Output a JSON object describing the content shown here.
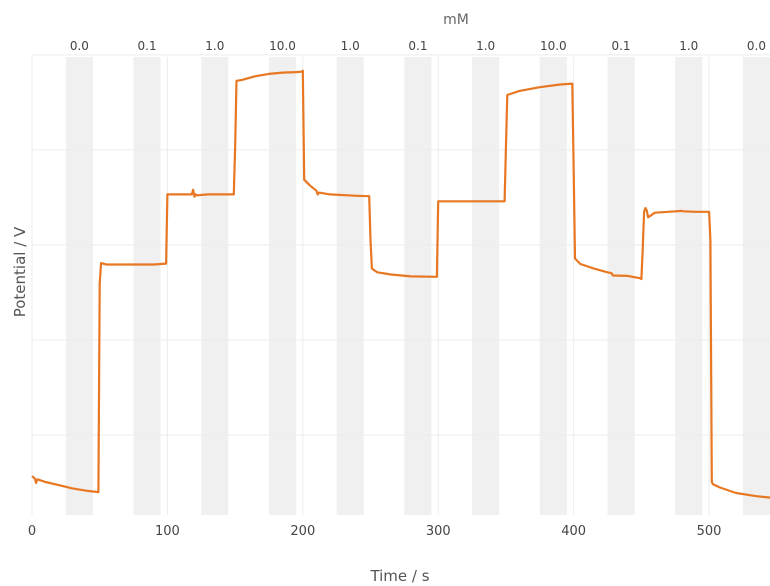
{
  "chart_data": {
    "type": "line",
    "xlabel": "Time / s",
    "ylabel": "Potential / V",
    "top_axis_title": "mM",
    "xlim": [
      0,
      545
    ],
    "ylim": [
      0,
      100
    ],
    "y_tick_labels_shown": false,
    "grid": true,
    "x_ticks": [
      0,
      100,
      200,
      300,
      400,
      500
    ],
    "x_tick_labels": [
      "0",
      "100",
      "200",
      "300",
      "400",
      "500"
    ],
    "top_ticks": [
      {
        "x": 35,
        "label": "0.0"
      },
      {
        "x": 85,
        "label": "0.1"
      },
      {
        "x": 135,
        "label": "1.0"
      },
      {
        "x": 185,
        "label": "10.0"
      },
      {
        "x": 235,
        "label": "1.0"
      },
      {
        "x": 285,
        "label": "0.1"
      },
      {
        "x": 335,
        "label": "1.0"
      },
      {
        "x": 385,
        "label": "10.0"
      },
      {
        "x": 435,
        "label": "0.1"
      },
      {
        "x": 485,
        "label": "1.0"
      },
      {
        "x": 535,
        "label": "0.0"
      }
    ],
    "shaded_intervals": [
      [
        25,
        45
      ],
      [
        75,
        95
      ],
      [
        125,
        145
      ],
      [
        175,
        195
      ],
      [
        225,
        245
      ],
      [
        275,
        295
      ],
      [
        325,
        345
      ],
      [
        375,
        395
      ],
      [
        425,
        445
      ],
      [
        475,
        495
      ],
      [
        525,
        545
      ]
    ],
    "series": [
      {
        "color": "#e87722",
        "x": [
          0,
          2,
          3,
          4,
          10,
          20,
          30,
          40,
          49,
          50,
          51,
          55,
          70,
          90,
          99,
          100,
          101,
          105,
          118,
          119,
          120,
          121,
          122,
          130,
          140,
          149,
          150,
          151,
          155,
          165,
          175,
          185,
          195,
          199,
          200,
          201,
          205,
          210,
          211,
          212,
          220,
          240,
          249,
          250,
          251,
          255,
          265,
          280,
          299,
          300,
          301,
          305,
          330,
          349,
          350,
          351,
          360,
          375,
          390,
          399,
          400,
          401,
          405,
          415,
          425,
          428,
          429,
          440,
          449,
          450,
          451,
          452,
          453,
          454,
          455,
          460,
          470,
          480,
          481,
          490,
          499,
          500,
          501,
          502,
          503,
          508,
          520,
          535,
          545
        ],
        "y": [
          8.5,
          8.0,
          7.0,
          7.8,
          7.2,
          6.5,
          5.8,
          5.3,
          5.0,
          50.5,
          55.0,
          54.7,
          54.7,
          54.7,
          54.9,
          70.0,
          70.0,
          70.0,
          70.0,
          71.0,
          69.5,
          70.0,
          69.8,
          70.0,
          70.0,
          70.0,
          80.0,
          94.8,
          95.0,
          95.8,
          96.3,
          96.6,
          96.7,
          96.8,
          97.0,
          73.2,
          72.0,
          70.8,
          70.0,
          70.4,
          70.0,
          69.7,
          69.6,
          60.0,
          53.8,
          53.0,
          52.5,
          52.1,
          52.0,
          68.5,
          68.5,
          68.5,
          68.5,
          68.5,
          80.0,
          91.7,
          92.6,
          93.4,
          94.0,
          94.2,
          75.0,
          56.0,
          54.8,
          53.8,
          53.0,
          52.8,
          52.3,
          52.2,
          51.7,
          51.5,
          58.0,
          66.2,
          67.0,
          66.5,
          65.0,
          66.0,
          66.2,
          66.4,
          66.3,
          66.2,
          66.2,
          66.2,
          60.0,
          7.2,
          6.7,
          6.0,
          4.8,
          4.1,
          3.8
        ]
      }
    ]
  }
}
